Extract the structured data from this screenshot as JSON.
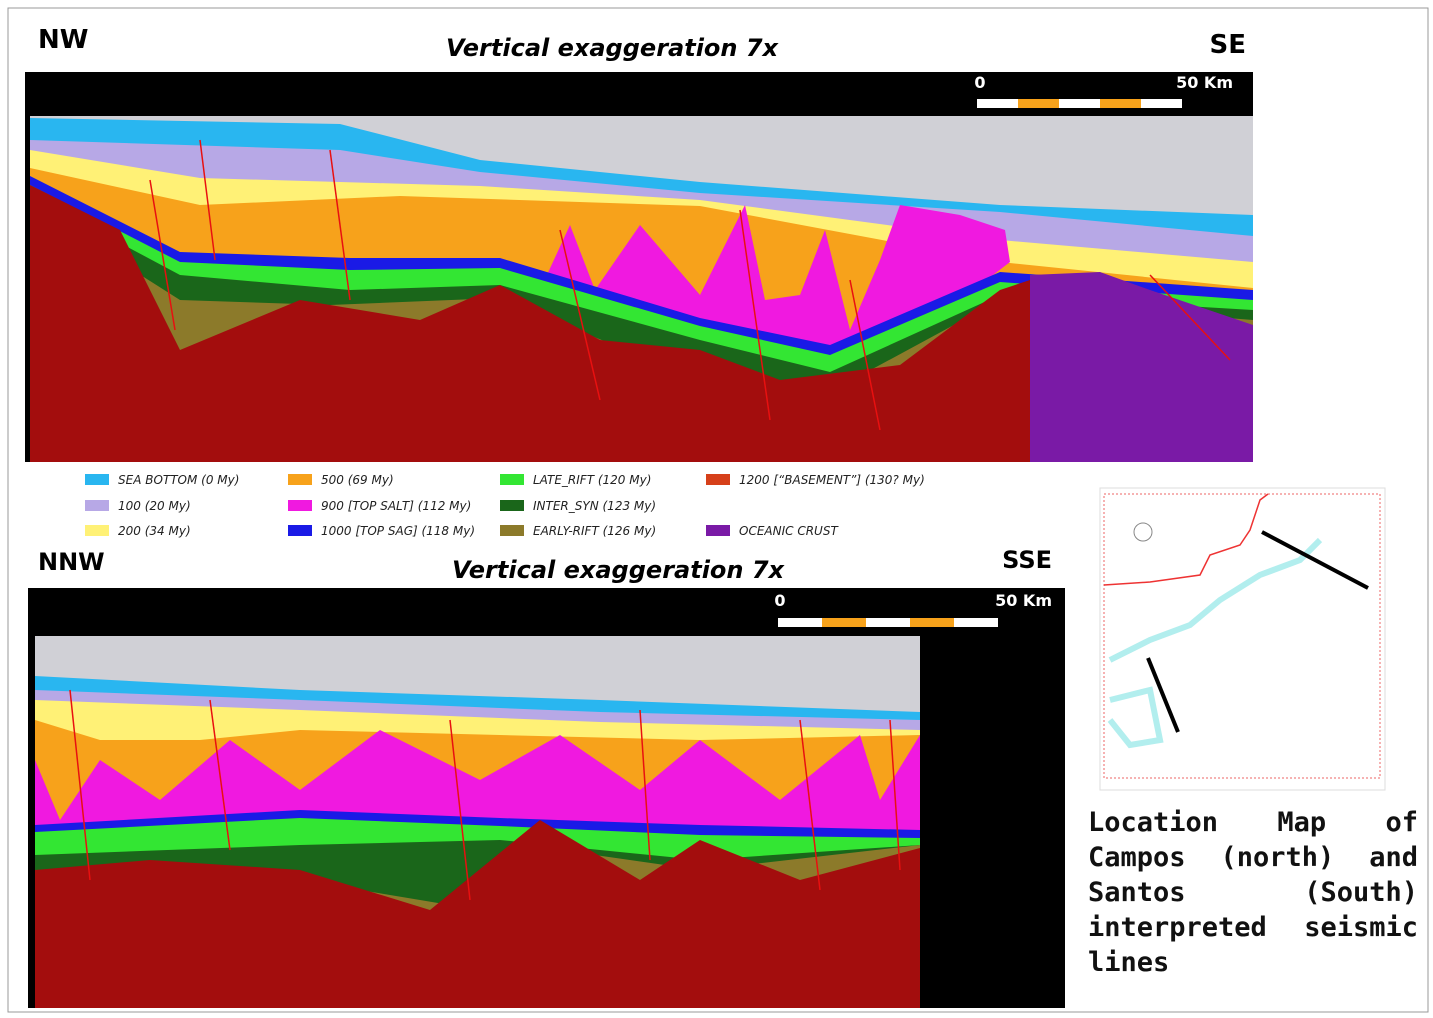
{
  "top_section": {
    "left_label": "NW",
    "right_label": "SE",
    "title": "Vertical exaggeration 7x",
    "scale_start": "0",
    "scale_end": "50 Km"
  },
  "legend": [
    {
      "label": "SEA BOTTOM (0 My)",
      "color": "#29b6f0"
    },
    {
      "label": "100 (20 My)",
      "color": "#b7a8e6"
    },
    {
      "label": "200 (34 My)",
      "color": "#fff176"
    },
    {
      "label": "500 (69 My)",
      "color": "#f7a21b"
    },
    {
      "label": "900 [TOP SALT] (112 My)",
      "color": "#f019e0"
    },
    {
      "label": "1000 [TOP SAG] (118 My)",
      "color": "#1a1ae6"
    },
    {
      "label": "LATE_RIFT (120 My)",
      "color": "#33e633"
    },
    {
      "label": "INTER_SYN (123 My)",
      "color": "#1a661a"
    },
    {
      "label": "EARLY-RIFT (126 My)",
      "color": "#8c7a2a"
    },
    {
      "label": "1200 [“BASEMENT”] (130? My)",
      "color": "#d6401a"
    },
    {
      "label": "OCEANIC CRUST",
      "color": "#7a1aa6"
    }
  ],
  "bottom_section": {
    "left_label": "NNW",
    "right_label": "SSE",
    "title": "Vertical exaggeration 7x",
    "scale_start": "0",
    "scale_end": "50 Km"
  },
  "caption": "Location Map of Campos (north) and Santos (South) interpreted seismic lines"
}
